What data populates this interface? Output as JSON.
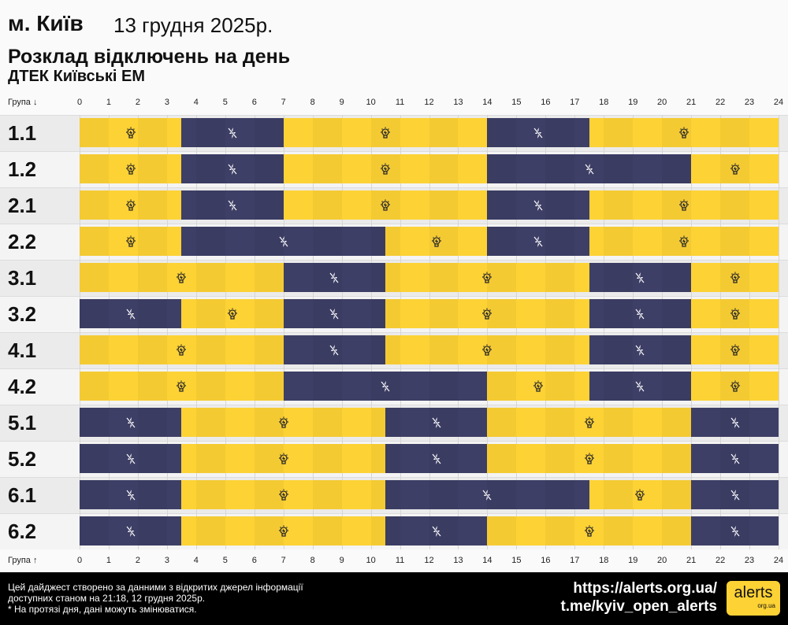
{
  "header": {
    "city": "м. Київ",
    "date": "13 грудня 2025р.",
    "title": "Розклад відключень на день",
    "subtitle": "ДТЕК Київські ЕМ"
  },
  "axis": {
    "top_label": "Група ↓",
    "bottom_label": "Група ↑"
  },
  "colors": {
    "power_on": "#fdd235",
    "power_off": "#3e3f66"
  },
  "chart_data": {
    "type": "timeline",
    "x_ticks": [
      0,
      1,
      2,
      3,
      4,
      5,
      6,
      7,
      8,
      9,
      10,
      11,
      12,
      13,
      14,
      15,
      16,
      17,
      18,
      19,
      20,
      21,
      22,
      23,
      24
    ],
    "xlim": [
      0,
      24
    ],
    "legend": {
      "on_icon": "lightbulb-icon",
      "off_icon": "power-off-lightning-icon"
    },
    "groups": [
      {
        "name": "1.1",
        "off": [
          [
            3.5,
            7
          ],
          [
            14,
            17.5
          ]
        ]
      },
      {
        "name": "1.2",
        "off": [
          [
            3.5,
            7
          ],
          [
            14,
            21
          ]
        ]
      },
      {
        "name": "2.1",
        "off": [
          [
            3.5,
            7
          ],
          [
            14,
            17.5
          ]
        ]
      },
      {
        "name": "2.2",
        "off": [
          [
            3.5,
            10.5
          ],
          [
            14,
            17.5
          ]
        ]
      },
      {
        "name": "3.1",
        "off": [
          [
            7,
            10.5
          ],
          [
            17.5,
            21
          ]
        ]
      },
      {
        "name": "3.2",
        "off": [
          [
            0,
            3.5
          ],
          [
            7,
            10.5
          ],
          [
            17.5,
            21
          ]
        ]
      },
      {
        "name": "4.1",
        "off": [
          [
            7,
            10.5
          ],
          [
            17.5,
            21
          ]
        ]
      },
      {
        "name": "4.2",
        "off": [
          [
            7,
            14
          ],
          [
            17.5,
            21
          ]
        ]
      },
      {
        "name": "5.1",
        "off": [
          [
            0,
            3.5
          ],
          [
            10.5,
            14
          ],
          [
            21,
            24
          ]
        ]
      },
      {
        "name": "5.2",
        "off": [
          [
            0,
            3.5
          ],
          [
            10.5,
            14
          ],
          [
            21,
            24
          ]
        ]
      },
      {
        "name": "6.1",
        "off": [
          [
            0,
            3.5
          ],
          [
            10.5,
            17.5
          ],
          [
            21,
            24
          ]
        ]
      },
      {
        "name": "6.2",
        "off": [
          [
            0,
            3.5
          ],
          [
            10.5,
            14
          ],
          [
            21,
            24
          ]
        ]
      }
    ]
  },
  "footer": {
    "line1": "Цей дайджест створено за данними з відкритих джерел інформації",
    "line2": "доступних станом на 21:18, 12 грудня 2025р.",
    "line3": "* На протязі дня, дані можуть змінюватися.",
    "site": "https://alerts.org.ua/",
    "telegram": "t.me/kyiv_open_alerts",
    "logo_main": "alerts",
    "logo_sub": "org.ua"
  }
}
